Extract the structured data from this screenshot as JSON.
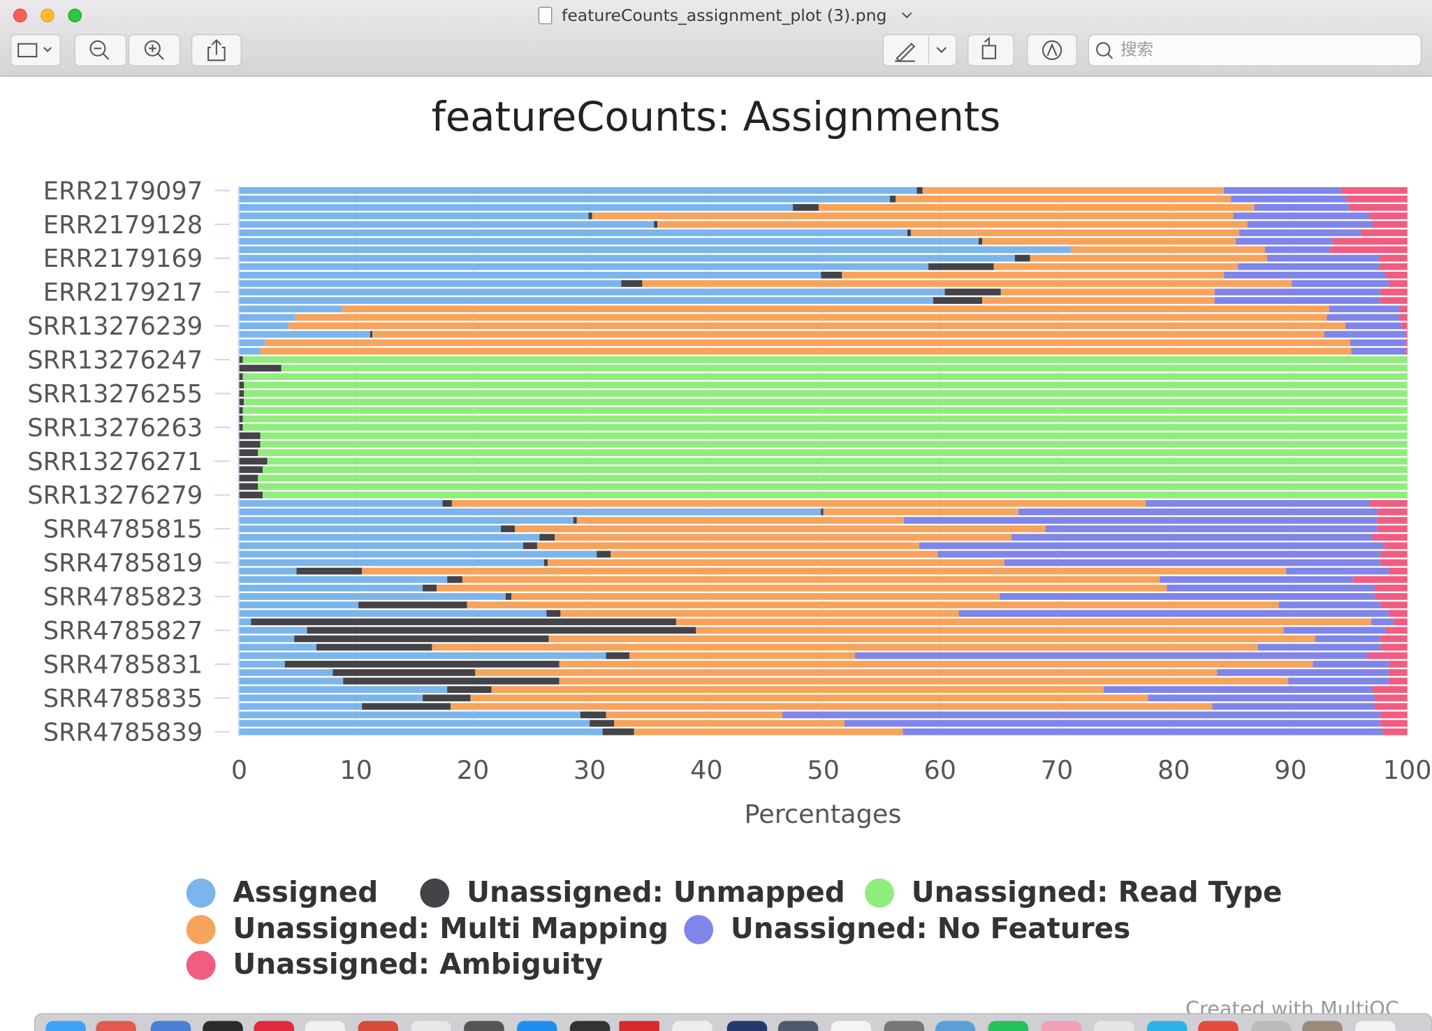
{
  "window": {
    "title": "featureCounts_assignment_plot (3).png",
    "search_placeholder": "搜索"
  },
  "chart_data": {
    "type": "stacked-barh",
    "title": "featureCounts: Assignments",
    "xlabel": "Percentages",
    "xlim": [
      0,
      100
    ],
    "xticks": [
      0,
      10,
      20,
      30,
      40,
      50,
      60,
      70,
      80,
      90,
      100
    ],
    "grid": true,
    "categories": [
      "ERR2179097",
      null,
      null,
      null,
      "ERR2179128",
      null,
      null,
      null,
      "ERR2179169",
      null,
      null,
      null,
      "ERR2179217",
      null,
      null,
      null,
      "SRR13276239",
      null,
      null,
      null,
      "SRR13276247",
      null,
      null,
      null,
      "SRR13276255",
      null,
      null,
      null,
      "SRR13276263",
      null,
      null,
      null,
      "SRR13276271",
      null,
      null,
      null,
      "SRR13276279",
      null,
      null,
      null,
      "SRR4785815",
      null,
      null,
      null,
      "SRR4785819",
      null,
      null,
      null,
      "SRR4785823",
      null,
      null,
      null,
      "SRR4785827",
      null,
      null,
      null,
      "SRR4785831",
      null,
      null,
      null,
      "SRR4785835",
      null,
      null,
      null,
      "SRR4785839"
    ],
    "series": [
      {
        "name": "Assigned",
        "color": "#7cb5ec",
        "values": [
          58.0,
          55.7,
          47.4,
          29.9,
          35.5,
          57.2,
          63.3,
          71.2,
          66.4,
          59.0,
          49.8,
          32.7,
          60.4,
          59.4,
          8.8,
          4.8,
          4.2,
          11.2,
          2.2,
          1.8,
          0,
          0,
          0,
          0,
          0,
          0,
          0,
          0,
          0,
          0,
          0,
          0,
          0,
          0,
          0,
          0,
          0,
          17.4,
          49.8,
          28.6,
          22.4,
          25.7,
          24.3,
          30.6,
          26.1,
          4.9,
          17.8,
          15.7,
          22.8,
          10.2,
          26.3,
          1.0,
          5.8,
          4.7,
          6.6,
          31.4,
          3.9,
          8.0,
          8.9,
          17.8,
          15.7,
          10.5,
          29.2,
          30.0,
          31.1
        ]
      },
      {
        "name": "Unassigned: Unmapped",
        "color": "#434348",
        "values": [
          0.5,
          0.5,
          2.2,
          0.3,
          0.3,
          0.3,
          0.3,
          0,
          1.3,
          5.6,
          1.8,
          1.8,
          4.8,
          4.2,
          0,
          0,
          0,
          0.2,
          0,
          0,
          0.3,
          3.6,
          0.3,
          0.4,
          0.4,
          0.4,
          0.3,
          0.3,
          0.3,
          1.8,
          1.8,
          1.6,
          2.4,
          2.0,
          1.6,
          1.6,
          2.0,
          0.8,
          0.2,
          0.3,
          1.2,
          1.3,
          1.2,
          1.2,
          0.3,
          5.6,
          1.3,
          1.2,
          0.5,
          9.3,
          1.2,
          36.4,
          33.3,
          21.8,
          9.9,
          2.0,
          23.5,
          12.2,
          18.5,
          3.8,
          4.1,
          7.6,
          2.2,
          2.1,
          2.7
        ]
      },
      {
        "name": "Unassigned: Read Type",
        "color": "#90ed7d",
        "values": [
          0,
          0,
          0,
          0,
          0,
          0,
          0,
          0,
          0,
          0,
          0,
          0,
          0,
          0,
          0,
          0,
          0,
          0,
          0,
          0,
          99.7,
          96.4,
          99.7,
          99.6,
          99.6,
          99.6,
          99.7,
          99.7,
          99.7,
          98.2,
          98.2,
          98.4,
          97.6,
          98.0,
          98.4,
          98.4,
          98.0,
          0,
          0,
          0,
          0,
          0,
          0,
          0,
          0,
          0,
          0,
          0,
          0,
          0,
          0,
          0,
          0,
          0,
          0,
          0,
          0,
          0,
          0,
          0,
          0,
          0,
          0,
          0,
          0
        ]
      },
      {
        "name": "Unassigned: Multi Mapping",
        "color": "#f7a35c",
        "values": [
          25.8,
          28.7,
          37.3,
          54.9,
          50.5,
          28.1,
          21.7,
          16.6,
          20.3,
          20.9,
          32.7,
          55.6,
          18.3,
          19.9,
          84.5,
          88.3,
          90.5,
          81.5,
          92.9,
          93.4,
          0,
          0,
          0,
          0,
          0,
          0,
          0,
          0,
          0,
          0,
          0,
          0,
          0,
          0,
          0,
          0,
          0,
          59.4,
          16.7,
          28.0,
          45.4,
          39.1,
          32.7,
          28.0,
          39.1,
          79.1,
          59.7,
          62.5,
          41.8,
          69.5,
          34.1,
          59.5,
          50.3,
          65.6,
          70.7,
          19.3,
          64.5,
          63.5,
          62.4,
          52.4,
          58.0,
          65.2,
          15.1,
          19.7,
          23.0
        ]
      },
      {
        "name": "Unassigned: No Features",
        "color": "#8085e9",
        "values": [
          10.0,
          9.9,
          8.1,
          11.7,
          10.7,
          10.4,
          8.3,
          5.6,
          9.6,
          12.1,
          13.8,
          8.3,
          14.2,
          14.2,
          6.0,
          6.2,
          4.8,
          6.9,
          4.7,
          4.6,
          0,
          0,
          0,
          0,
          0,
          0,
          0,
          0,
          0,
          0,
          0,
          0,
          0,
          0,
          0,
          0,
          0,
          19.2,
          30.7,
          40.5,
          28.4,
          30.9,
          39.8,
          37.9,
          32.2,
          8.8,
          16.6,
          17.8,
          32.1,
          8.7,
          36.8,
          1.9,
          8.7,
          5.6,
          10.5,
          43.9,
          6.5,
          14.7,
          8.6,
          23.0,
          19.4,
          13.9,
          51.2,
          45.9,
          41.1
        ]
      },
      {
        "name": "Unassigned: Ambiguity",
        "color": "#f15c80",
        "values": [
          5.7,
          5.2,
          5.0,
          3.2,
          3.0,
          4.0,
          6.4,
          6.6,
          2.4,
          2.4,
          1.9,
          1.6,
          2.3,
          2.3,
          0.7,
          0.7,
          0.5,
          0.2,
          0.2,
          0.2,
          0,
          0,
          0,
          0,
          0,
          0,
          0,
          0,
          0,
          0,
          0,
          0,
          0,
          0,
          0,
          0,
          0,
          3.2,
          2.6,
          2.6,
          2.6,
          3.0,
          2.0,
          2.3,
          2.3,
          1.6,
          4.6,
          2.8,
          2.8,
          2.3,
          1.6,
          1.2,
          1.9,
          2.3,
          2.3,
          3.4,
          1.6,
          1.6,
          1.6,
          3.0,
          2.8,
          2.8,
          2.3,
          2.3,
          2.1
        ]
      }
    ]
  },
  "footer_credit": "Created with MultiQC"
}
